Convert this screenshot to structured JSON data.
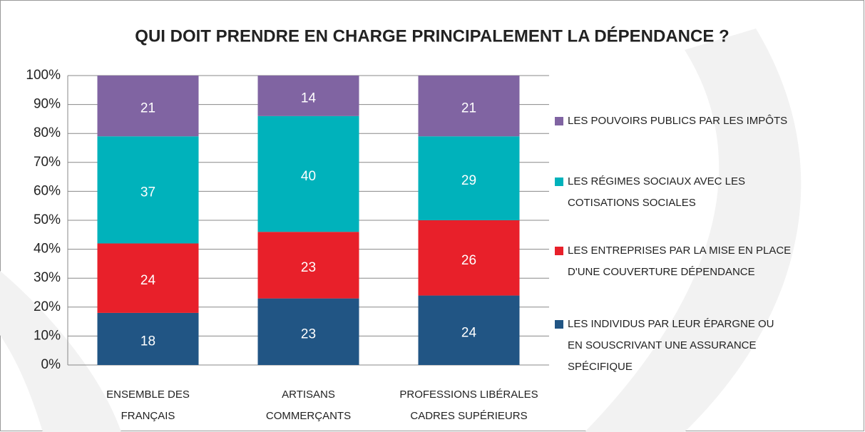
{
  "chart_data": {
    "type": "stacked_bar",
    "title": "QUI DOIT PRENDRE EN CHARGE PRINCIPALEMENT LA DÉPENDANCE ?",
    "categories": [
      [
        "ENSEMBLE DES",
        "FRANÇAIS"
      ],
      [
        "ARTISANS",
        "COMMERÇANTS"
      ],
      [
        "PROFESSIONS LIBÉRALES",
        "CADRES SUPÉRIEURS"
      ]
    ],
    "series": [
      {
        "name": [
          "LES INDIVIDUS PAR LEUR ÉPARGNE OU",
          "EN SOUSCRIVANT UNE ASSURANCE",
          "SPÉCIFIQUE"
        ],
        "color": "#215584",
        "values": [
          18,
          23,
          24
        ]
      },
      {
        "name": [
          "LES ENTREPRISES PAR LA MISE EN PLACE",
          "D'UNE COUVERTURE DÉPENDANCE"
        ],
        "color": "#e8202a",
        "values": [
          24,
          23,
          26
        ]
      },
      {
        "name": [
          "LES RÉGIMES SOCIAUX AVEC LES",
          "COTISATIONS SOCIALES"
        ],
        "color": "#00b2bb",
        "values": [
          37,
          40,
          29
        ]
      },
      {
        "name": [
          "LES POUVOIRS PUBLICS PAR LES IMPÔTS"
        ],
        "color": "#8064a2",
        "values": [
          21,
          14,
          21
        ]
      }
    ],
    "ylim": [
      0,
      100
    ],
    "yticks": [
      {
        "value": 0,
        "label": "0%"
      },
      {
        "value": 10,
        "label": "10%"
      },
      {
        "value": 20,
        "label": "20%"
      },
      {
        "value": 30,
        "label": "30%"
      },
      {
        "value": 40,
        "label": "40%"
      },
      {
        "value": 50,
        "label": "50%"
      },
      {
        "value": 60,
        "label": "60%"
      },
      {
        "value": 70,
        "label": "70%"
      },
      {
        "value": 80,
        "label": "80%"
      },
      {
        "value": 90,
        "label": "90%"
      },
      {
        "value": 100,
        "label": "100%"
      }
    ],
    "grid": true,
    "legend": "right"
  }
}
